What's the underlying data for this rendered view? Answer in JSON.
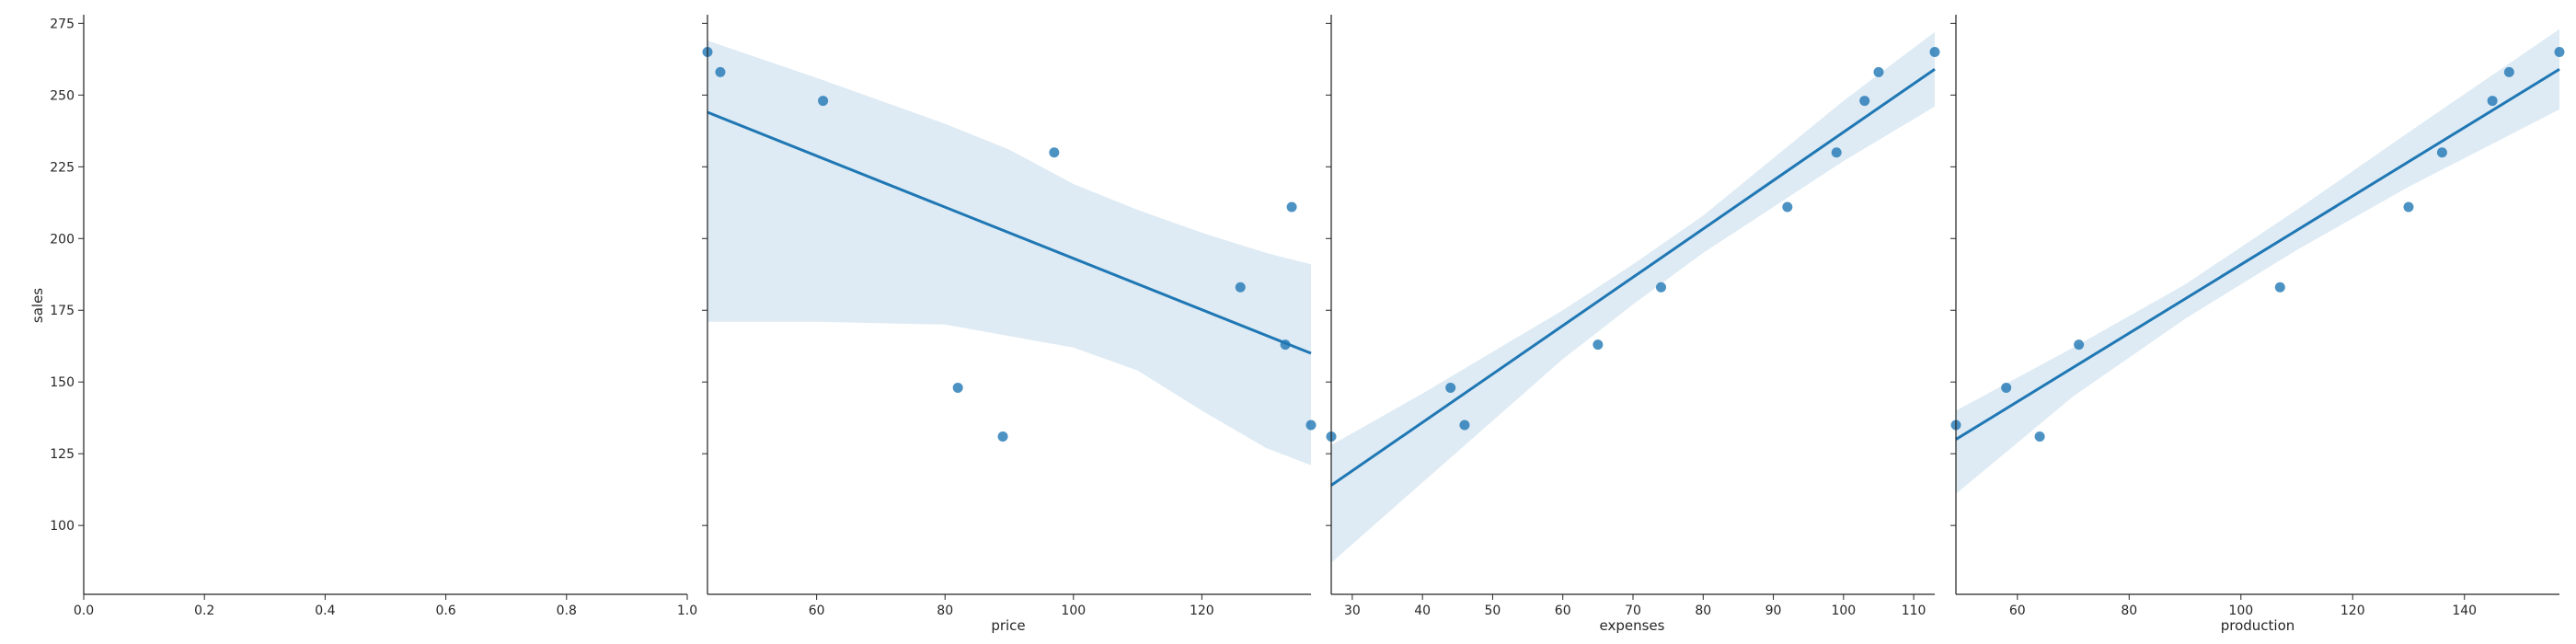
{
  "colors": {
    "points": "#1f77b4",
    "line": "#1f77b4",
    "ci_band": "#1f77b4",
    "axis": "#262626"
  },
  "chart_data": [
    {
      "type": "scatter",
      "panel": "empty",
      "xlabel": "",
      "ylabel": "sales",
      "xlim": [
        0.0,
        1.0
      ],
      "ylim": [
        76,
        278
      ],
      "xticks": [
        0.0,
        0.2,
        0.4,
        0.6,
        0.8,
        1.0
      ],
      "xtick_labels": [
        "0.0",
        "0.2",
        "0.4",
        "0.6",
        "0.8",
        "1.0"
      ],
      "yticks": [
        100,
        125,
        150,
        175,
        200,
        225,
        250,
        275
      ],
      "ytick_labels": [
        "100",
        "125",
        "150",
        "175",
        "200",
        "225",
        "250",
        "275"
      ],
      "points": []
    },
    {
      "type": "scatter",
      "panel": "price",
      "xlabel": "price",
      "ylabel": "",
      "xlim": [
        43,
        137
      ],
      "ylim": [
        76,
        278
      ],
      "xticks": [
        60,
        80,
        100,
        120
      ],
      "xtick_labels": [
        "60",
        "80",
        "100",
        "120"
      ],
      "yticks": [
        100,
        125,
        150,
        175,
        200,
        225,
        250,
        275
      ],
      "points": [
        {
          "x": 43,
          "y": 265
        },
        {
          "x": 45,
          "y": 258
        },
        {
          "x": 61,
          "y": 248
        },
        {
          "x": 82,
          "y": 148
        },
        {
          "x": 89,
          "y": 131
        },
        {
          "x": 97,
          "y": 230
        },
        {
          "x": 126,
          "y": 183
        },
        {
          "x": 134,
          "y": 211
        },
        {
          "x": 133,
          "y": 163
        },
        {
          "x": 137,
          "y": 135
        }
      ],
      "regression": {
        "x": [
          43,
          137
        ],
        "y": [
          244,
          160
        ]
      },
      "ci": [
        {
          "x": 43,
          "lo": 171,
          "hi": 269
        },
        {
          "x": 60,
          "lo": 171,
          "hi": 256
        },
        {
          "x": 80,
          "lo": 170,
          "hi": 240
        },
        {
          "x": 90,
          "lo": 166,
          "hi": 231
        },
        {
          "x": 100,
          "lo": 162,
          "hi": 219
        },
        {
          "x": 110,
          "lo": 154,
          "hi": 210
        },
        {
          "x": 120,
          "lo": 140,
          "hi": 202
        },
        {
          "x": 130,
          "lo": 127,
          "hi": 195
        },
        {
          "x": 137,
          "lo": 121,
          "hi": 191
        }
      ]
    },
    {
      "type": "scatter",
      "panel": "expenses",
      "xlabel": "expenses",
      "ylabel": "",
      "xlim": [
        27,
        113
      ],
      "ylim": [
        76,
        278
      ],
      "xticks": [
        30,
        40,
        50,
        60,
        70,
        80,
        90,
        100,
        110
      ],
      "xtick_labels": [
        "30",
        "40",
        "50",
        "60",
        "70",
        "80",
        "90",
        "100",
        "110"
      ],
      "yticks": [
        100,
        125,
        150,
        175,
        200,
        225,
        250,
        275
      ],
      "points": [
        {
          "x": 27,
          "y": 131
        },
        {
          "x": 44,
          "y": 148
        },
        {
          "x": 46,
          "y": 135
        },
        {
          "x": 65,
          "y": 163
        },
        {
          "x": 74,
          "y": 183
        },
        {
          "x": 92,
          "y": 211
        },
        {
          "x": 99,
          "y": 230
        },
        {
          "x": 103,
          "y": 248
        },
        {
          "x": 105,
          "y": 258
        },
        {
          "x": 113,
          "y": 265
        }
      ],
      "regression": {
        "x": [
          27,
          113
        ],
        "y": [
          114,
          259
        ]
      },
      "ci": [
        {
          "x": 27,
          "lo": 87,
          "hi": 128
        },
        {
          "x": 40,
          "lo": 115,
          "hi": 146
        },
        {
          "x": 60,
          "lo": 158,
          "hi": 175
        },
        {
          "x": 70,
          "lo": 177,
          "hi": 191
        },
        {
          "x": 80,
          "lo": 195,
          "hi": 208
        },
        {
          "x": 100,
          "lo": 227,
          "hi": 248
        },
        {
          "x": 113,
          "lo": 246,
          "hi": 272
        }
      ]
    },
    {
      "type": "scatter",
      "panel": "production",
      "xlabel": "production",
      "ylabel": "",
      "xlim": [
        49,
        157
      ],
      "ylim": [
        76,
        278
      ],
      "xticks": [
        60,
        80,
        100,
        120,
        140
      ],
      "xtick_labels": [
        "60",
        "80",
        "100",
        "120",
        "140"
      ],
      "yticks": [
        100,
        125,
        150,
        175,
        200,
        225,
        250,
        275
      ],
      "points": [
        {
          "x": 49,
          "y": 135
        },
        {
          "x": 58,
          "y": 148
        },
        {
          "x": 64,
          "y": 131
        },
        {
          "x": 71,
          "y": 163
        },
        {
          "x": 107,
          "y": 183
        },
        {
          "x": 130,
          "y": 211
        },
        {
          "x": 136,
          "y": 230
        },
        {
          "x": 145,
          "y": 248
        },
        {
          "x": 148,
          "y": 258
        },
        {
          "x": 157,
          "y": 265
        }
      ],
      "regression": {
        "x": [
          49,
          157
        ],
        "y": [
          130,
          259
        ]
      },
      "ci": [
        {
          "x": 49,
          "lo": 111,
          "hi": 140
        },
        {
          "x": 70,
          "lo": 145,
          "hi": 162
        },
        {
          "x": 90,
          "lo": 172,
          "hi": 184
        },
        {
          "x": 110,
          "lo": 196,
          "hi": 210
        },
        {
          "x": 130,
          "lo": 218,
          "hi": 237
        },
        {
          "x": 157,
          "lo": 245,
          "hi": 273
        }
      ]
    }
  ]
}
